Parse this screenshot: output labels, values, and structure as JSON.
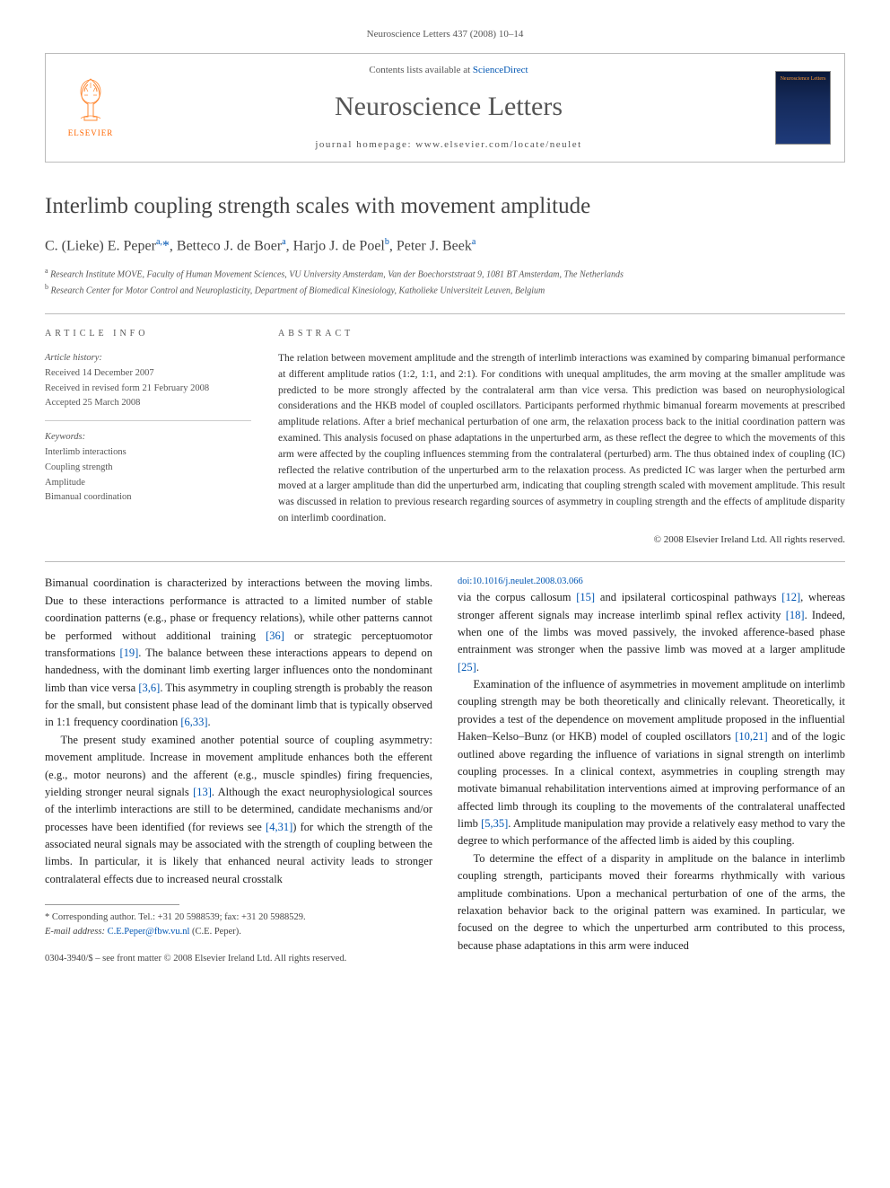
{
  "header": {
    "citation": "Neuroscience Letters 437 (2008) 10–14",
    "contents_prefix": "Contents lists available at ",
    "contents_link": "ScienceDirect",
    "journal_name": "Neuroscience Letters",
    "homepage_label": "journal homepage: www.elsevier.com/locate/neulet",
    "publisher_name": "ELSEVIER",
    "cover_label": "Neuroscience Letters"
  },
  "article": {
    "title": "Interlimb coupling strength scales with movement amplitude",
    "authors_html": "C. (Lieke) E. Peper<sup>a,</sup><span class=\"corr\">*</span>, Betteco J. de Boer<sup>a</sup>, Harjo J. de Poel<sup>b</sup>, Peter J. Beek<sup>a</sup>",
    "affiliations": [
      "a Research Institute MOVE, Faculty of Human Movement Sciences, VU University Amsterdam, Van der Boechorststraat 9, 1081 BT Amsterdam, The Netherlands",
      "b Research Center for Motor Control and Neuroplasticity, Department of Biomedical Kinesiology, Katholieke Universiteit Leuven, Belgium"
    ]
  },
  "info": {
    "heading": "article info",
    "history_label": "Article history:",
    "history": [
      "Received 14 December 2007",
      "Received in revised form 21 February 2008",
      "Accepted 25 March 2008"
    ],
    "keywords_label": "Keywords:",
    "keywords": [
      "Interlimb interactions",
      "Coupling strength",
      "Amplitude",
      "Bimanual coordination"
    ]
  },
  "abstract": {
    "heading": "abstract",
    "text": "The relation between movement amplitude and the strength of interlimb interactions was examined by comparing bimanual performance at different amplitude ratios (1:2, 1:1, and 2:1). For conditions with unequal amplitudes, the arm moving at the smaller amplitude was predicted to be more strongly affected by the contralateral arm than vice versa. This prediction was based on neurophysiological considerations and the HKB model of coupled oscillators. Participants performed rhythmic bimanual forearm movements at prescribed amplitude relations. After a brief mechanical perturbation of one arm, the relaxation process back to the initial coordination pattern was examined. This analysis focused on phase adaptations in the unperturbed arm, as these reflect the degree to which the movements of this arm were affected by the coupling influences stemming from the contralateral (perturbed) arm. The thus obtained index of coupling (IC) reflected the relative contribution of the unperturbed arm to the relaxation process. As predicted IC was larger when the perturbed arm moved at a larger amplitude than did the unperturbed arm, indicating that coupling strength scaled with movement amplitude. This result was discussed in relation to previous research regarding sources of asymmetry in coupling strength and the effects of amplitude disparity on interlimb coordination.",
    "copyright": "© 2008 Elsevier Ireland Ltd. All rights reserved."
  },
  "body": {
    "p1": "Bimanual coordination is characterized by interactions between the moving limbs. Due to these interactions performance is attracted to a limited number of stable coordination patterns (e.g., phase or frequency relations), while other patterns cannot be performed without additional training [36] or strategic perceptuomotor transformations [19]. The balance between these interactions appears to depend on handedness, with the dominant limb exerting larger influences onto the nondominant limb than vice versa [3,6]. This asymmetry in coupling strength is probably the reason for the small, but consistent phase lead of the dominant limb that is typically observed in 1:1 frequency coordination [6,33].",
    "p2": "The present study examined another potential source of coupling asymmetry: movement amplitude. Increase in movement amplitude enhances both the efferent (e.g., motor neurons) and the afferent (e.g., muscle spindles) firing frequencies, yielding stronger neural signals [13]. Although the exact neurophysiological sources of the interlimb interactions are still to be determined, candidate mechanisms and/or processes have been identified (for reviews see [4,31]) for which the strength of the associated neural signals may be associated with the strength of coupling between the limbs. In particular, it is likely that enhanced neural activity leads to stronger contralateral effects due to increased neural crosstalk",
    "p3": "via the corpus callosum [15] and ipsilateral corticospinal pathways [12], whereas stronger afferent signals may increase interlimb spinal reflex activity [18]. Indeed, when one of the limbs was moved passively, the invoked afference-based phase entrainment was stronger when the passive limb was moved at a larger amplitude [25].",
    "p4": "Examination of the influence of asymmetries in movement amplitude on interlimb coupling strength may be both theoretically and clinically relevant. Theoretically, it provides a test of the dependence on movement amplitude proposed in the influential Haken–Kelso–Bunz (or HKB) model of coupled oscillators [10,21] and of the logic outlined above regarding the influence of variations in signal strength on interlimb coupling processes. In a clinical context, asymmetries in coupling strength may motivate bimanual rehabilitation interventions aimed at improving performance of an affected limb through its coupling to the movements of the contralateral unaffected limb [5,35]. Amplitude manipulation may provide a relatively easy method to vary the degree to which performance of the affected limb is aided by this coupling.",
    "p5": "To determine the effect of a disparity in amplitude on the balance in interlimb coupling strength, participants moved their forearms rhythmically with various amplitude combinations. Upon a mechanical perturbation of one of the arms, the relaxation behavior back to the original pattern was examined. In particular, we focused on the degree to which the unperturbed arm contributed to this process, because phase adaptations in this arm were induced"
  },
  "footnote": {
    "corr": "* Corresponding author. Tel.: +31 20 5988539; fax: +31 20 5988529.",
    "email_label": "E-mail address:",
    "email": "C.E.Peper@fbw.vu.nl",
    "email_who": "(C.E. Peper)."
  },
  "footer": {
    "issn": "0304-3940/$ – see front matter © 2008 Elsevier Ireland Ltd. All rights reserved.",
    "doi": "doi:10.1016/j.neulet.2008.03.066"
  },
  "colors": {
    "link": "#0056b3",
    "text": "#333333",
    "muted": "#555555",
    "border": "#bbbbbb",
    "elsevier_orange": "#ff6600"
  }
}
